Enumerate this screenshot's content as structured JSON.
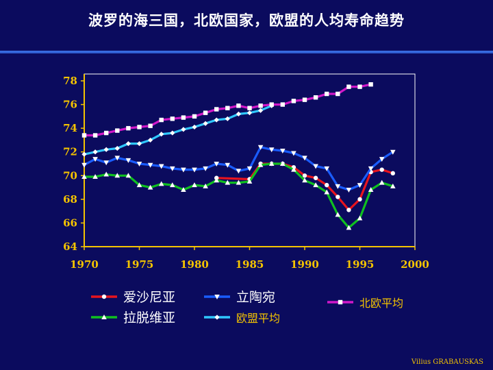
{
  "slide": {
    "title": "波罗的海三国，北欧国家，欧盟的人均寿命趋势",
    "credit": "Vilius GRABAUSKAS"
  },
  "chart_data": {
    "type": "line",
    "title": "",
    "xlabel": "",
    "ylabel": "",
    "xlim": [
      1970,
      2000
    ],
    "ylim": [
      64,
      78
    ],
    "x_ticks": [
      "1970",
      "1975",
      "1980",
      "1985",
      "1990",
      "1995",
      "2000"
    ],
    "y_ticks": [
      "64",
      "66",
      "68",
      "70",
      "72",
      "74",
      "76",
      "78"
    ],
    "grid": false,
    "series": [
      {
        "name": "爱沙尼亚",
        "color": "#e8141e",
        "marker": "circle",
        "legend_color": "white",
        "points": [
          [
            1982,
            69.8
          ],
          [
            1985,
            69.7
          ],
          [
            1986,
            71.0
          ],
          [
            1987,
            71.0
          ],
          [
            1988,
            71.0
          ],
          [
            1989,
            70.7
          ],
          [
            1990,
            70.0
          ],
          [
            1991,
            69.8
          ],
          [
            1992,
            69.2
          ],
          [
            1993,
            68.2
          ],
          [
            1994,
            67.1
          ],
          [
            1995,
            68.0
          ],
          [
            1996,
            70.3
          ],
          [
            1997,
            70.5
          ],
          [
            1998,
            70.2
          ]
        ]
      },
      {
        "name": "立陶宛",
        "color": "#1a5cff",
        "marker": "triangle-down",
        "legend_color": "white",
        "points": [
          [
            1970,
            70.9
          ],
          [
            1971,
            71.4
          ],
          [
            1972,
            71.1
          ],
          [
            1973,
            71.5
          ],
          [
            1974,
            71.3
          ],
          [
            1975,
            71.0
          ],
          [
            1976,
            70.9
          ],
          [
            1977,
            70.8
          ],
          [
            1978,
            70.6
          ],
          [
            1979,
            70.5
          ],
          [
            1980,
            70.5
          ],
          [
            1981,
            70.6
          ],
          [
            1982,
            71.0
          ],
          [
            1983,
            70.9
          ],
          [
            1984,
            70.4
          ],
          [
            1985,
            70.6
          ],
          [
            1986,
            72.4
          ],
          [
            1987,
            72.2
          ],
          [
            1988,
            72.1
          ],
          [
            1989,
            71.9
          ],
          [
            1990,
            71.5
          ],
          [
            1991,
            70.8
          ],
          [
            1992,
            70.6
          ],
          [
            1993,
            69.1
          ],
          [
            1994,
            68.8
          ],
          [
            1995,
            69.2
          ],
          [
            1996,
            70.6
          ],
          [
            1997,
            71.4
          ],
          [
            1998,
            72.0
          ]
        ]
      },
      {
        "name": "北欧平均",
        "color": "#d018c8",
        "marker": "square",
        "legend_color": "yellow",
        "points": [
          [
            1970,
            73.4
          ],
          [
            1971,
            73.4
          ],
          [
            1972,
            73.6
          ],
          [
            1973,
            73.8
          ],
          [
            1974,
            74.0
          ],
          [
            1975,
            74.1
          ],
          [
            1976,
            74.2
          ],
          [
            1977,
            74.7
          ],
          [
            1978,
            74.8
          ],
          [
            1979,
            74.9
          ],
          [
            1980,
            75.0
          ],
          [
            1981,
            75.3
          ],
          [
            1982,
            75.6
          ],
          [
            1983,
            75.7
          ],
          [
            1984,
            75.9
          ],
          [
            1985,
            75.7
          ],
          [
            1986,
            75.9
          ],
          [
            1987,
            76.0
          ],
          [
            1988,
            76.0
          ],
          [
            1989,
            76.3
          ],
          [
            1990,
            76.4
          ],
          [
            1991,
            76.6
          ],
          [
            1992,
            76.9
          ],
          [
            1993,
            76.9
          ],
          [
            1994,
            77.5
          ],
          [
            1995,
            77.5
          ],
          [
            1996,
            77.7
          ]
        ]
      },
      {
        "name": "拉脱维亚",
        "color": "#10c020",
        "marker": "triangle-up",
        "legend_color": "white",
        "points": [
          [
            1970,
            69.9
          ],
          [
            1971,
            69.9
          ],
          [
            1972,
            70.1
          ],
          [
            1973,
            70.0
          ],
          [
            1974,
            70.0
          ],
          [
            1975,
            69.2
          ],
          [
            1976,
            69.0
          ],
          [
            1977,
            69.3
          ],
          [
            1978,
            69.2
          ],
          [
            1979,
            68.8
          ],
          [
            1980,
            69.2
          ],
          [
            1981,
            69.1
          ],
          [
            1982,
            69.6
          ],
          [
            1983,
            69.4
          ],
          [
            1984,
            69.4
          ],
          [
            1985,
            69.5
          ],
          [
            1986,
            70.9
          ],
          [
            1987,
            71.0
          ],
          [
            1988,
            71.0
          ],
          [
            1989,
            70.5
          ],
          [
            1990,
            69.6
          ],
          [
            1991,
            69.2
          ],
          [
            1992,
            68.6
          ],
          [
            1993,
            66.7
          ],
          [
            1994,
            65.6
          ],
          [
            1995,
            66.4
          ],
          [
            1996,
            68.8
          ],
          [
            1997,
            69.4
          ],
          [
            1998,
            69.1
          ]
        ]
      },
      {
        "name": "欧盟平均",
        "color": "#30c8ff",
        "marker": "diamond",
        "legend_color": "yellow",
        "points": [
          [
            1970,
            71.8
          ],
          [
            1971,
            72.0
          ],
          [
            1972,
            72.2
          ],
          [
            1973,
            72.3
          ],
          [
            1974,
            72.7
          ],
          [
            1975,
            72.7
          ],
          [
            1976,
            73.0
          ],
          [
            1977,
            73.5
          ],
          [
            1978,
            73.6
          ],
          [
            1979,
            73.9
          ],
          [
            1980,
            74.1
          ],
          [
            1981,
            74.4
          ],
          [
            1982,
            74.7
          ],
          [
            1983,
            74.8
          ],
          [
            1984,
            75.2
          ],
          [
            1985,
            75.3
          ],
          [
            1986,
            75.5
          ],
          [
            1987,
            75.9
          ]
        ]
      }
    ]
  }
}
